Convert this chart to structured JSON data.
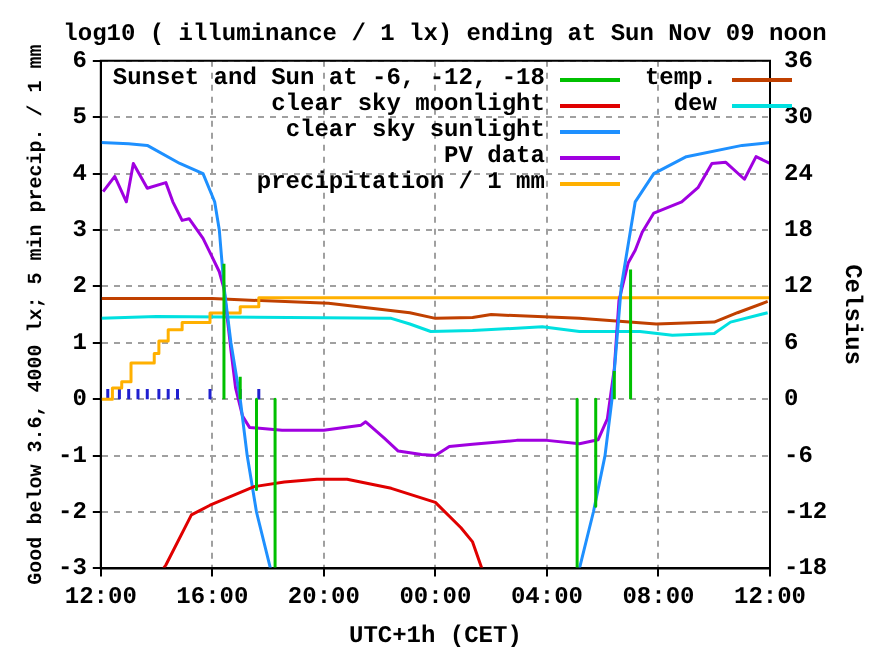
{
  "chart_data": {
    "type": "line",
    "title": "log10 ( illuminance / 1 lx) ending at Sun Nov 09 noon",
    "xlabel": "UTC+1h (CET)",
    "ylabel": "Good below 3.6, 4000 lx; 5 min precip. / 1 mm",
    "y2label": "Celsius",
    "xlim": [
      "--11-08T12:00",
      "--11-09T12:00"
    ],
    "xticks": [
      {
        "value": "--11-08T12:00",
        "label": "12:00"
      },
      {
        "value": "--11-08T16:00",
        "label": "16:00"
      },
      {
        "value": "--11-08T20:00",
        "label": "20:00"
      },
      {
        "value": "--11-09T00:00",
        "label": "00:00"
      },
      {
        "value": "--11-09T04:00",
        "label": "04:00"
      },
      {
        "value": "--11-09T08:00",
        "label": "08:00"
      },
      {
        "value": "--11-09T12:00",
        "label": "12:00"
      }
    ],
    "ylim": [
      -3,
      6
    ],
    "yticks": [
      -3,
      -2,
      -1,
      0,
      1,
      2,
      3,
      4,
      5,
      6
    ],
    "y2lim": [
      -18,
      36
    ],
    "y2ticks": [
      -18,
      -12,
      -6,
      0,
      6,
      12,
      18,
      24,
      30,
      36
    ],
    "grid": true,
    "legend": "top",
    "series": [
      {
        "name": "Sunset and Sun at -6, -12, -18",
        "color": "#00c000",
        "x": [
          "--11-08T16:25",
          "--11-08T16:25",
          null,
          "--11-08T17:00",
          "--11-08T17:00",
          null,
          "--11-08T17:35",
          "--11-08T17:35",
          null,
          "--11-08T18:15",
          "--11-08T18:15",
          null,
          "--11-09T05:05",
          "--11-09T05:05",
          null,
          "--11-09T05:45",
          "--11-09T05:45",
          null,
          "--11-09T06:25",
          "--11-09T06:25",
          null,
          "--11-09T07:00",
          "--11-09T07:00"
        ],
        "values": [
          0,
          2.4,
          null,
          0,
          0.4,
          null,
          0,
          -1.6,
          null,
          0,
          -3,
          null,
          0,
          -3,
          null,
          0,
          -1.9,
          null,
          0,
          0.5,
          null,
          0,
          2.3
        ]
      },
      {
        "name": "clear sky moonlight",
        "color": "#e00000",
        "x": [
          "--11-08T14:15",
          "--11-08T14:20",
          "--11-08T15:15",
          "--11-08T15:55",
          "--11-08T17:30",
          "--11-08T18:35",
          "--11-08T19:45",
          "--11-08T20:50",
          "--11-08T22:25",
          "--11-09T00:00",
          "--11-09T00:55",
          "--11-09T01:20",
          "--11-09T01:40"
        ],
        "values": [
          -3,
          -2.94,
          -2.05,
          -1.88,
          -1.55,
          -1.47,
          -1.42,
          -1.42,
          -1.58,
          -1.83,
          -2.28,
          -2.53,
          -3
        ]
      },
      {
        "name": "clear sky sunlight",
        "color": "#1e90ff",
        "x": [
          "--11-08T12:00",
          "--11-08T13:00",
          "--11-08T13:40",
          "--11-08T14:50",
          "--11-08T15:40",
          "--11-08T16:05",
          "--11-08T16:15",
          "--11-08T16:25",
          "--11-08T16:40",
          "--11-08T17:00",
          "--11-08T17:15",
          "--11-08T17:35",
          "--11-08T18:05",
          null,
          "--11-09T05:10",
          "--11-09T05:40",
          "--11-09T06:05",
          "--11-09T06:20",
          "--11-09T06:30",
          "--11-09T06:40",
          "--11-09T07:00",
          "--11-09T07:10",
          "--11-09T07:50",
          "--11-09T09:00",
          "--11-09T11:00",
          "--11-09T12:00"
        ],
        "values": [
          4.55,
          4.53,
          4.5,
          4.18,
          4.0,
          3.5,
          3.0,
          2.0,
          1.0,
          0,
          -1,
          -2,
          -3,
          null,
          -3,
          -2,
          -1,
          0,
          1,
          2,
          3,
          3.5,
          4.0,
          4.3,
          4.5,
          4.55
        ]
      },
      {
        "name": "PV data",
        "color": "#a000e0",
        "x": [
          "--11-08T12:05",
          "--11-08T12:30",
          "--11-08T12:55",
          "--11-08T13:10",
          "--11-08T13:40",
          "--11-08T14:20",
          "--11-08T14:35",
          "--11-08T14:55",
          "--11-08T15:10",
          "--11-08T15:40",
          "--11-08T15:55",
          "--11-08T16:15",
          "--11-08T16:25",
          "--11-08T16:40",
          "--11-08T16:50",
          "--11-08T17:05",
          "--11-08T17:20",
          "--11-08T18:30",
          "--11-08T20:00",
          "--11-08T21:20",
          "--11-08T21:30",
          "--11-08T22:10",
          "--11-08T22:40",
          "--11-08T23:30",
          "--11-09T00:00",
          "--11-09T00:30",
          "--11-09T01:20",
          "--11-09T02:55",
          "--11-09T04:00",
          "--11-09T05:10",
          "--11-09T05:50",
          "--11-09T06:10",
          "--11-09T06:25",
          "--11-09T06:35",
          "--11-09T06:55",
          "--11-09T07:10",
          "--11-09T07:25",
          "--11-09T07:50",
          "--11-09T08:50",
          "--11-09T09:25",
          "--11-09T09:55",
          "--11-09T10:25",
          "--11-09T11:05",
          "--11-09T11:30",
          "--11-09T12:00"
        ],
        "values": [
          3.68,
          3.95,
          3.5,
          4.18,
          3.74,
          3.84,
          3.5,
          3.17,
          3.2,
          2.85,
          2.6,
          2.26,
          1.96,
          0.87,
          0.2,
          -0.3,
          -0.5,
          -0.55,
          -0.55,
          -0.46,
          -0.4,
          -0.69,
          -0.92,
          -0.98,
          -1.0,
          -0.84,
          -0.8,
          -0.73,
          -0.73,
          -0.79,
          -0.72,
          -0.35,
          0.54,
          1.75,
          2.42,
          2.64,
          2.96,
          3.3,
          3.5,
          3.75,
          4.18,
          4.2,
          3.9,
          4.3,
          4.18
        ]
      },
      {
        "name": "precipitation / 1 mm",
        "type": "step",
        "color": "#ffb000",
        "x": [
          "--11-08T12:00",
          "--11-08T12:25",
          "--11-08T12:45",
          "--11-08T13:05",
          "--11-08T13:55",
          "--11-08T14:05",
          "--11-08T14:25",
          "--11-08T14:55",
          "--11-08T15:55",
          "--11-08T17:00",
          "--11-08T17:40",
          "--11-09T12:00"
        ],
        "values": [
          0,
          0.2,
          0.31,
          0.64,
          0.81,
          1.03,
          1.23,
          1.36,
          1.53,
          1.64,
          1.8,
          1.82
        ]
      },
      {
        "name": "temp.",
        "axis": "y2",
        "color": "#c04000",
        "x": [
          "--11-08T12:00",
          "--11-08T16:00",
          "--11-08T20:10",
          "--11-08T23:05",
          "--11-09T00:00",
          "--11-09T01:20",
          "--11-09T02:00",
          "--11-09T05:10",
          "--11-09T07:55",
          "--11-09T10:00",
          "--11-09T10:50",
          "--11-09T11:55"
        ],
        "values": [
          10.7,
          10.7,
          10.2,
          9.2,
          8.6,
          8.7,
          9.0,
          8.6,
          8.0,
          8.2,
          9.2,
          10.4
        ]
      },
      {
        "name": "dew",
        "axis": "y2",
        "color": "#00e0e0",
        "x": [
          "--11-08T12:00",
          "--11-08T14:00",
          "--11-08T22:25",
          "--11-08T23:05",
          "--11-08T23:50",
          "--11-09T01:20",
          "--11-09T03:50",
          "--11-09T05:10",
          "--11-09T07:20",
          "--11-09T08:30",
          "--11-09T10:00",
          "--11-09T10:35",
          "--11-09T11:55"
        ],
        "values": [
          8.6,
          8.8,
          8.6,
          8.0,
          7.2,
          7.3,
          7.7,
          7.2,
          7.2,
          6.8,
          7.0,
          8.2,
          9.2
        ]
      },
      {
        "color": "#2020d0",
        "x": [
          "--11-08T12:15",
          "--11-08T12:15",
          null,
          "--11-08T12:40",
          "--11-08T12:40",
          null,
          "--11-08T13:00",
          "--11-08T13:00",
          null,
          "--11-08T13:20",
          "--11-08T13:20",
          null,
          "--11-08T13:40",
          "--11-08T13:40",
          null,
          "--11-08T14:05",
          "--11-08T14:05",
          null,
          "--11-08T14:25",
          "--11-08T14:25",
          null,
          "--11-08T14:45",
          "--11-08T14:45",
          null,
          "--11-08T15:55",
          "--11-08T15:55",
          null,
          "--11-08T17:00",
          "--11-08T17:00",
          null,
          "--11-08T17:40",
          "--11-08T17:40"
        ],
        "values": [
          0,
          0.18,
          null,
          0,
          0.18,
          null,
          0,
          0.18,
          null,
          0,
          0.18,
          null,
          0,
          0.18,
          null,
          0,
          0.18,
          null,
          0,
          0.18,
          null,
          0,
          0.18,
          null,
          0,
          0.18,
          null,
          0,
          0.18,
          null,
          0,
          0.18
        ]
      }
    ]
  }
}
